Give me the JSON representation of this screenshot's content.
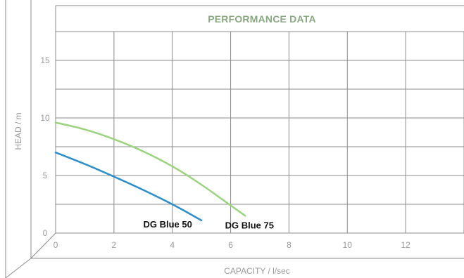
{
  "chart_data": {
    "type": "line",
    "title": "PERFORMANCE DATA",
    "xlabel": "CAPACITY / l/sec",
    "ylabel": "HEAD / m",
    "xlim": [
      0,
      14
    ],
    "ylim": [
      0,
      17.5
    ],
    "x_ticks": [
      0,
      2,
      4,
      6,
      8,
      10,
      12
    ],
    "y_ticks": [
      0,
      5,
      10,
      15
    ],
    "grid": true,
    "series": [
      {
        "name": "DG Blue 50",
        "color": "#2b8ecb",
        "x": [
          0,
          1,
          2,
          3,
          4,
          5
        ],
        "y": [
          7.0,
          6.0,
          4.9,
          3.75,
          2.5,
          1.1
        ]
      },
      {
        "name": "DG Blue 75",
        "color": "#9bd37f",
        "x": [
          0,
          1,
          2,
          3,
          4,
          5,
          6,
          6.5
        ],
        "y": [
          9.6,
          9.0,
          8.15,
          7.1,
          5.8,
          4.2,
          2.4,
          1.5
        ]
      }
    ],
    "colors": {
      "title": "#8aa882",
      "frame": "#8c8c8c",
      "text": "#9a9a9a"
    }
  }
}
